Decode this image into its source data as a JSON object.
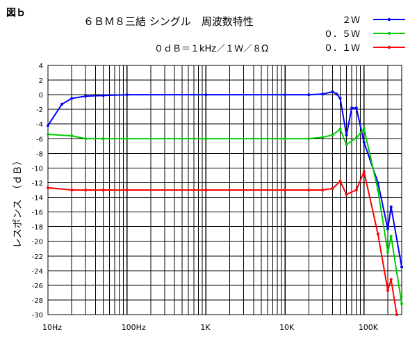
{
  "figure_label": "図ｂ",
  "chart_data": {
    "type": "line",
    "title": "６ＢＭ８三結 シングル　周波数特性",
    "subtitle": "０ｄＢ＝１kHz／１Ｗ／８Ω",
    "xlabel": "",
    "ylabel": "レスポンス　（ｄＢ）",
    "x_scale": "log",
    "xlim": [
      10,
      300000
    ],
    "ylim": [
      -30,
      4
    ],
    "y_ticks": [
      4,
      2,
      0,
      -2,
      -4,
      -6,
      -8,
      -10,
      -12,
      -14,
      -16,
      -18,
      -20,
      -22,
      -24,
      -26,
      -28,
      -30
    ],
    "x_ticks": [
      {
        "value": 10,
        "label": "10Hz"
      },
      {
        "value": 100,
        "label": "100Hz"
      },
      {
        "value": 1000,
        "label": "1K"
      },
      {
        "value": 10000,
        "label": "10K"
      },
      {
        "value": 100000,
        "label": "100K"
      }
    ],
    "grid": true,
    "legend_position": "top-right",
    "series": [
      {
        "name": "２Ｗ",
        "color": "#0000ff",
        "points": [
          [
            10,
            -4.2
          ],
          [
            15,
            -1.3
          ],
          [
            20,
            -0.5
          ],
          [
            30,
            -0.2
          ],
          [
            50,
            -0.1
          ],
          [
            100,
            0
          ],
          [
            1000,
            0
          ],
          [
            10000,
            0
          ],
          [
            20000,
            0
          ],
          [
            30000,
            0.1
          ],
          [
            40000,
            0.4
          ],
          [
            45000,
            0.1
          ],
          [
            50000,
            -0.5
          ],
          [
            60000,
            -5.5
          ],
          [
            70000,
            -1.8
          ],
          [
            80000,
            -1.8
          ],
          [
            100000,
            -6.5
          ],
          [
            150000,
            -12
          ],
          [
            200000,
            -18.3
          ],
          [
            220000,
            -15.3
          ],
          [
            300000,
            -23.5
          ]
        ]
      },
      {
        "name": "０．５Ｗ",
        "color": "#00cc00",
        "points": [
          [
            10,
            -5.4
          ],
          [
            20,
            -5.6
          ],
          [
            30,
            -6
          ],
          [
            50,
            -6
          ],
          [
            100,
            -6
          ],
          [
            1000,
            -6
          ],
          [
            10000,
            -6
          ],
          [
            20000,
            -6
          ],
          [
            30000,
            -5.8
          ],
          [
            40000,
            -5.5
          ],
          [
            50000,
            -4.7
          ],
          [
            60000,
            -6.8
          ],
          [
            80000,
            -5.9
          ],
          [
            100000,
            -4.6
          ],
          [
            150000,
            -13
          ],
          [
            200000,
            -21.5
          ],
          [
            220000,
            -19.3
          ],
          [
            300000,
            -28.5
          ]
        ]
      },
      {
        "name": "０．１Ｗ",
        "color": "#ff0000",
        "points": [
          [
            10,
            -12.7
          ],
          [
            20,
            -13
          ],
          [
            30,
            -13
          ],
          [
            50,
            -13
          ],
          [
            100,
            -13
          ],
          [
            1000,
            -13
          ],
          [
            10000,
            -13
          ],
          [
            20000,
            -13
          ],
          [
            30000,
            -13
          ],
          [
            40000,
            -12.8
          ],
          [
            50000,
            -11.8
          ],
          [
            60000,
            -13.6
          ],
          [
            80000,
            -13
          ],
          [
            100000,
            -10.5
          ],
          [
            150000,
            -19
          ],
          [
            200000,
            -26.7
          ],
          [
            220000,
            -25.2
          ],
          [
            260000,
            -30
          ]
        ]
      }
    ]
  }
}
